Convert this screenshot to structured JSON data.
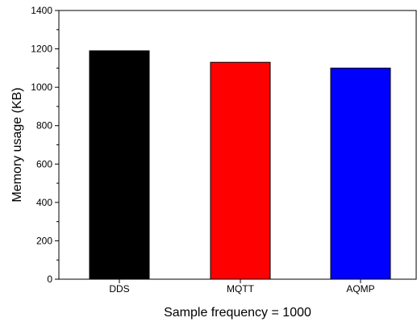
{
  "chart_data": {
    "type": "bar",
    "title": "",
    "xlabel": "Sample frequency = 1000",
    "ylabel": "Memory usage (KB)",
    "categories": [
      "DDS",
      "MQTT",
      "AQMP"
    ],
    "values": [
      1190,
      1130,
      1100
    ],
    "colors": [
      "#000000",
      "#ff0000",
      "#0000ff"
    ],
    "ylim": [
      0,
      1400
    ],
    "yticks": [
      0,
      200,
      400,
      600,
      800,
      1000,
      1200,
      1400
    ],
    "ytick_labels": [
      "0",
      "200",
      "400",
      "600",
      "800",
      "1000",
      "1200",
      "1400"
    ],
    "minor_yticks": true,
    "grid": false,
    "legend": "none",
    "bar_edge_color": "#000000"
  }
}
